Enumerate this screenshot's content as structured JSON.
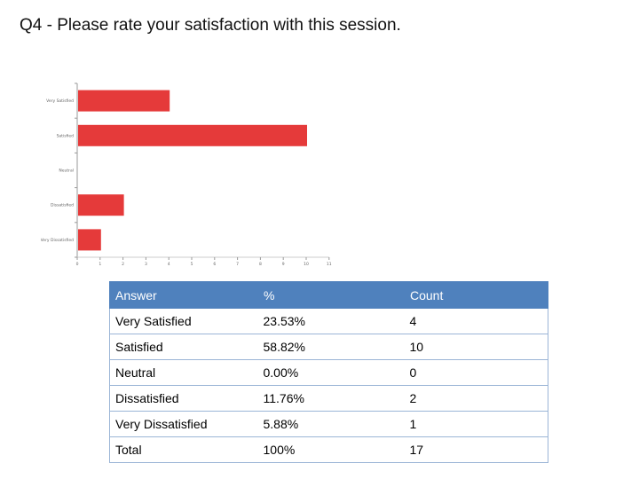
{
  "page": {
    "title": "Q4 - Please rate your satisfaction with this session."
  },
  "chart_data": {
    "type": "bar",
    "orientation": "horizontal",
    "categories": [
      "Very Satisfied",
      "Satisfied",
      "Neutral",
      "Dissatisfied",
      "Very Dissatisfied"
    ],
    "values": [
      4,
      10,
      0,
      2,
      1
    ],
    "xlim": [
      0,
      11
    ],
    "xticks": [
      0,
      1,
      2,
      3,
      4,
      5,
      6,
      7,
      8,
      9,
      10,
      11
    ],
    "bar_color": "#e53a3a",
    "grid": false,
    "legend": "none"
  },
  "table": {
    "headers": [
      "Answer",
      "%",
      "Count"
    ],
    "rows": [
      [
        "Very Satisfied",
        "23.53%",
        "4"
      ],
      [
        "Satisfied",
        "58.82%",
        "10"
      ],
      [
        "Neutral",
        "0.00%",
        "0"
      ],
      [
        "Dissatisfied",
        "11.76%",
        "2"
      ],
      [
        "Very Dissatisfied",
        "5.88%",
        "1"
      ],
      [
        "Total",
        "100%",
        "17"
      ]
    ],
    "header_color": "#4f81bd"
  }
}
